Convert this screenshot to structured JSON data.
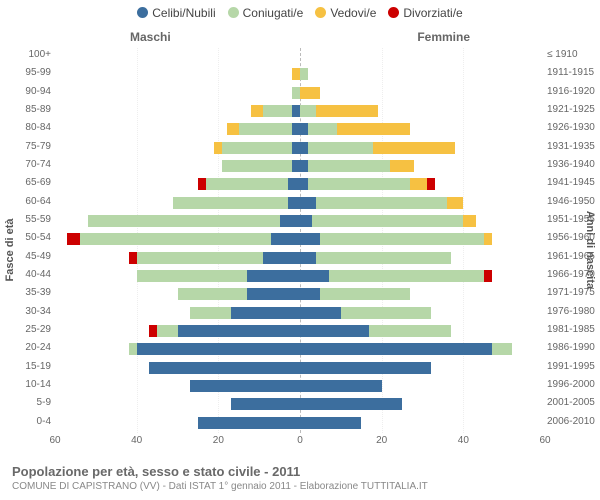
{
  "legend": {
    "items": [
      {
        "label": "Celibi/Nubili",
        "color": "#3c6e9e"
      },
      {
        "label": "Coniugati/e",
        "color": "#b6d7a8"
      },
      {
        "label": "Vedovi/e",
        "color": "#f6c142"
      },
      {
        "label": "Divorziati/e",
        "color": "#cc0000"
      }
    ]
  },
  "headers": {
    "left": "Maschi",
    "right": "Femmine",
    "y_left": "Fasce di età",
    "y_right": "Anni di nascita"
  },
  "footer": {
    "title": "Popolazione per età, sesso e stato civile - 2011",
    "sub": "COMUNE DI CAPISTRANO (VV) - Dati ISTAT 1° gennaio 2011 - Elaborazione TUTTITALIA.IT"
  },
  "xaxis": {
    "max": 60,
    "ticks": [
      60,
      40,
      20,
      0,
      20,
      40,
      60
    ]
  },
  "colors": {
    "celibi": "#3c6e9e",
    "coniugati": "#b6d7a8",
    "vedovi": "#f6c142",
    "divorziati": "#cc0000",
    "grid": "#eeeeee",
    "centerline": "#bbbbbb",
    "background": "#ffffff"
  },
  "rows": [
    {
      "age": "100+",
      "birth": "≤ 1910",
      "m": {
        "c": 0,
        "co": 0,
        "v": 0,
        "d": 0
      },
      "f": {
        "c": 0,
        "co": 0,
        "v": 0,
        "d": 0
      }
    },
    {
      "age": "95-99",
      "birth": "1911-1915",
      "m": {
        "c": 0,
        "co": 0,
        "v": 2,
        "d": 0
      },
      "f": {
        "c": 0,
        "co": 2,
        "v": 0,
        "d": 0
      }
    },
    {
      "age": "90-94",
      "birth": "1916-1920",
      "m": {
        "c": 0,
        "co": 2,
        "v": 0,
        "d": 0
      },
      "f": {
        "c": 0,
        "co": 0,
        "v": 5,
        "d": 0
      }
    },
    {
      "age": "85-89",
      "birth": "1921-1925",
      "m": {
        "c": 2,
        "co": 7,
        "v": 3,
        "d": 0
      },
      "f": {
        "c": 0,
        "co": 4,
        "v": 15,
        "d": 0
      }
    },
    {
      "age": "80-84",
      "birth": "1926-1930",
      "m": {
        "c": 2,
        "co": 13,
        "v": 3,
        "d": 0
      },
      "f": {
        "c": 2,
        "co": 7,
        "v": 18,
        "d": 0
      }
    },
    {
      "age": "75-79",
      "birth": "1931-1935",
      "m": {
        "c": 2,
        "co": 17,
        "v": 2,
        "d": 0
      },
      "f": {
        "c": 2,
        "co": 16,
        "v": 20,
        "d": 0
      }
    },
    {
      "age": "70-74",
      "birth": "1936-1940",
      "m": {
        "c": 2,
        "co": 17,
        "v": 0,
        "d": 0
      },
      "f": {
        "c": 2,
        "co": 20,
        "v": 6,
        "d": 0
      }
    },
    {
      "age": "65-69",
      "birth": "1941-1945",
      "m": {
        "c": 3,
        "co": 20,
        "v": 0,
        "d": 2
      },
      "f": {
        "c": 2,
        "co": 25,
        "v": 4,
        "d": 2
      }
    },
    {
      "age": "60-64",
      "birth": "1946-1950",
      "m": {
        "c": 3,
        "co": 28,
        "v": 0,
        "d": 0
      },
      "f": {
        "c": 4,
        "co": 32,
        "v": 4,
        "d": 0
      }
    },
    {
      "age": "55-59",
      "birth": "1951-1955",
      "m": {
        "c": 5,
        "co": 47,
        "v": 0,
        "d": 0
      },
      "f": {
        "c": 3,
        "co": 37,
        "v": 3,
        "d": 0
      }
    },
    {
      "age": "50-54",
      "birth": "1956-1960",
      "m": {
        "c": 7,
        "co": 47,
        "v": 0,
        "d": 3
      },
      "f": {
        "c": 5,
        "co": 40,
        "v": 2,
        "d": 0
      }
    },
    {
      "age": "45-49",
      "birth": "1961-1965",
      "m": {
        "c": 9,
        "co": 31,
        "v": 0,
        "d": 2
      },
      "f": {
        "c": 4,
        "co": 33,
        "v": 0,
        "d": 0
      }
    },
    {
      "age": "40-44",
      "birth": "1966-1970",
      "m": {
        "c": 13,
        "co": 27,
        "v": 0,
        "d": 0
      },
      "f": {
        "c": 7,
        "co": 38,
        "v": 0,
        "d": 2
      }
    },
    {
      "age": "35-39",
      "birth": "1971-1975",
      "m": {
        "c": 13,
        "co": 17,
        "v": 0,
        "d": 0
      },
      "f": {
        "c": 5,
        "co": 22,
        "v": 0,
        "d": 0
      }
    },
    {
      "age": "30-34",
      "birth": "1976-1980",
      "m": {
        "c": 17,
        "co": 10,
        "v": 0,
        "d": 0
      },
      "f": {
        "c": 10,
        "co": 22,
        "v": 0,
        "d": 0
      }
    },
    {
      "age": "25-29",
      "birth": "1981-1985",
      "m": {
        "c": 30,
        "co": 5,
        "v": 0,
        "d": 2
      },
      "f": {
        "c": 17,
        "co": 20,
        "v": 0,
        "d": 0
      }
    },
    {
      "age": "20-24",
      "birth": "1986-1990",
      "m": {
        "c": 40,
        "co": 2,
        "v": 0,
        "d": 0
      },
      "f": {
        "c": 47,
        "co": 5,
        "v": 0,
        "d": 0
      }
    },
    {
      "age": "15-19",
      "birth": "1991-1995",
      "m": {
        "c": 37,
        "co": 0,
        "v": 0,
        "d": 0
      },
      "f": {
        "c": 32,
        "co": 0,
        "v": 0,
        "d": 0
      }
    },
    {
      "age": "10-14",
      "birth": "1996-2000",
      "m": {
        "c": 27,
        "co": 0,
        "v": 0,
        "d": 0
      },
      "f": {
        "c": 20,
        "co": 0,
        "v": 0,
        "d": 0
      }
    },
    {
      "age": "5-9",
      "birth": "2001-2005",
      "m": {
        "c": 17,
        "co": 0,
        "v": 0,
        "d": 0
      },
      "f": {
        "c": 25,
        "co": 0,
        "v": 0,
        "d": 0
      }
    },
    {
      "age": "0-4",
      "birth": "2006-2010",
      "m": {
        "c": 25,
        "co": 0,
        "v": 0,
        "d": 0
      },
      "f": {
        "c": 15,
        "co": 0,
        "v": 0,
        "d": 0
      }
    }
  ]
}
